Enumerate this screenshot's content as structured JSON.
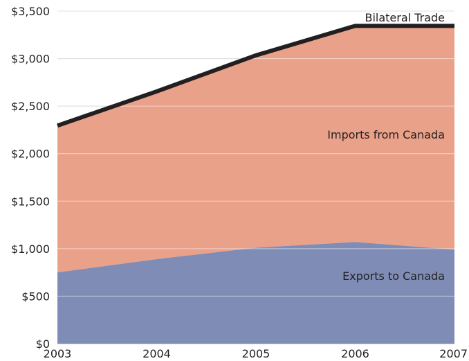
{
  "chart_data": {
    "type": "area",
    "stacked": true,
    "x": [
      "2003",
      "2004",
      "2005",
      "2006",
      "2007"
    ],
    "series": [
      {
        "name": "Exports to Canada",
        "values": [
          750,
          890,
          1010,
          1070,
          990
        ],
        "color": "#7f8cb5"
      },
      {
        "name": "Imports from Canada",
        "values": [
          1530,
          1750,
          2010,
          2260,
          2340
        ],
        "color": "#e9a189"
      },
      {
        "name": "Bilateral Trade",
        "values": [
          2280,
          2640,
          3020,
          3330,
          3330
        ],
        "color": "#231f20"
      }
    ],
    "y_ticks": [
      "$0",
      "$500",
      "$1,000",
      "$1,500",
      "$2,000",
      "$2,500",
      "$3,000",
      "$3,500"
    ],
    "ylim": [
      0,
      3500
    ],
    "grid": true,
    "title": "",
    "xlabel": "",
    "ylabel": ""
  }
}
